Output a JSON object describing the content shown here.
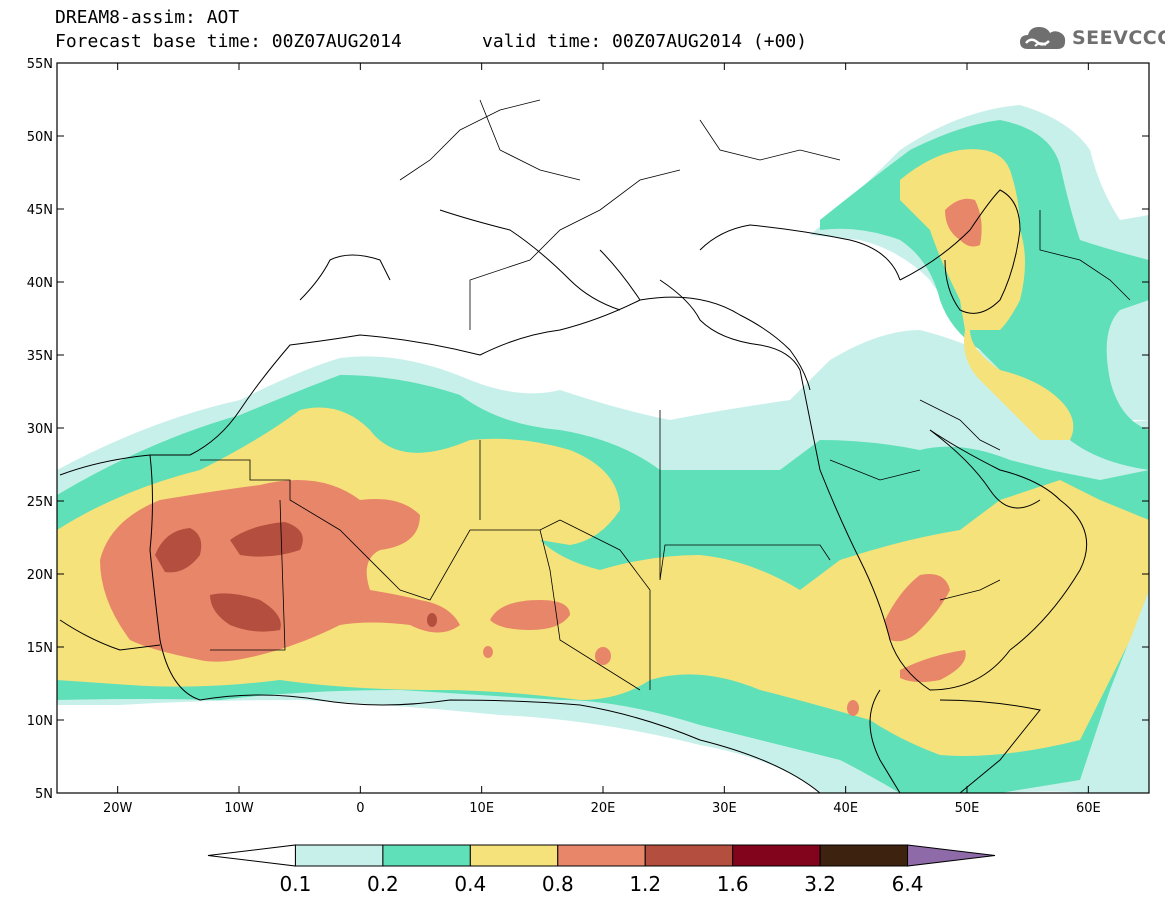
{
  "header": {
    "title": "DREAM8-assim: AOT",
    "forecast_base": "Forecast base time: 00Z07AUG2014",
    "valid_time": "valid time: 00Z07AUG2014 (+00)"
  },
  "logo": {
    "text": "SEEVCCC",
    "icon": "cloud-icon"
  },
  "axes": {
    "lon_labels": [
      "20W",
      "10W",
      "0",
      "10E",
      "20E",
      "30E",
      "40E",
      "50E",
      "60E"
    ],
    "lon_values": [
      -20,
      -10,
      0,
      10,
      20,
      30,
      40,
      50,
      60
    ],
    "lat_labels": [
      "55N",
      "50N",
      "45N",
      "40N",
      "35N",
      "30N",
      "25N",
      "20N",
      "15N",
      "10N",
      "5N"
    ],
    "lat_values": [
      55,
      50,
      45,
      40,
      35,
      30,
      25,
      20,
      15,
      10,
      5
    ],
    "lon_range": [
      -25,
      65
    ],
    "lat_range": [
      5,
      55
    ]
  },
  "colorbar": {
    "labels": [
      "0.1",
      "0.2",
      "0.4",
      "0.8",
      "1.2",
      "1.6",
      "3.2",
      "6.4"
    ],
    "colors": [
      "#ffffff",
      "#c8f0ea",
      "#5fe0b8",
      "#f6e27a",
      "#e8866a",
      "#b44e3e",
      "#82041c",
      "#3e2210",
      "#8e6aa8"
    ]
  },
  "map_colors": {
    "c1": "#c8f0ea",
    "c2": "#5fe0b8",
    "c3": "#f6e27a",
    "c4": "#e8866a",
    "c5": "#b44e3e"
  }
}
